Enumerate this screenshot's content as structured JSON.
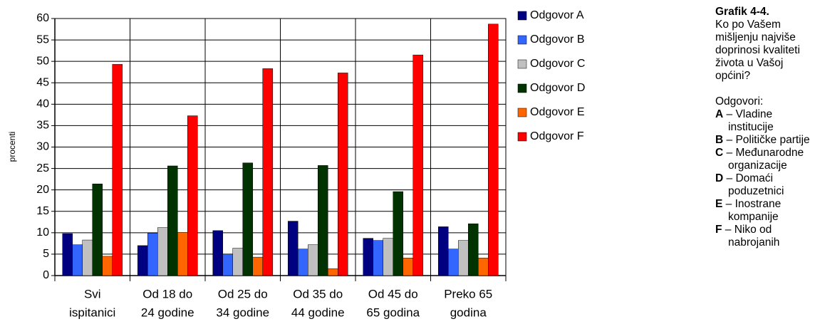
{
  "chart_data": {
    "type": "bar",
    "y_axis_label": "procenti",
    "categories": [
      [
        "Svi",
        "ispitanici"
      ],
      [
        "Od 18 do",
        "24 godine"
      ],
      [
        "Od 25 do",
        "34 godine"
      ],
      [
        "Od 35 do",
        "44 godine"
      ],
      [
        "Od 45 do",
        "65 godina"
      ],
      [
        "Preko 65",
        "godina"
      ]
    ],
    "series": [
      {
        "name": "Odgovor A",
        "color": "#000080",
        "values": [
          9.8,
          7,
          10.5,
          12.7,
          8.7,
          11.4
        ]
      },
      {
        "name": "Odgovor B",
        "color": "#3366ff",
        "values": [
          7.2,
          9.9,
          5,
          6.2,
          8.2,
          6.2
        ]
      },
      {
        "name": "Odgovor C",
        "color": "#c0c0c0",
        "values": [
          8.3,
          11.2,
          6.4,
          7.2,
          8.7,
          8.2
        ]
      },
      {
        "name": "Odgovor D",
        "color": "#003300",
        "values": [
          21.4,
          25.6,
          26.3,
          25.7,
          19.6,
          12.1
        ]
      },
      {
        "name": "Odgovor E",
        "color": "#ff6600",
        "values": [
          4.5,
          10.1,
          4.3,
          1.6,
          4.1,
          4.1
        ]
      },
      {
        "name": "Odgovor F",
        "color": "#ff0000",
        "values": [
          49.3,
          37.3,
          48.3,
          47.3,
          51.5,
          58.7
        ]
      }
    ],
    "ylim": [
      0,
      60
    ],
    "yticks": [
      0,
      5,
      10,
      15,
      20,
      25,
      30,
      35,
      40,
      45,
      50,
      55,
      60
    ],
    "grid": true,
    "legend": "right"
  },
  "side_note": {
    "title": "Grafik 4-4.",
    "question": "Ko po Vašem mišljenju najviše doprinosi kvaliteti života u Vašoj općini?",
    "answers_label": "Odgovori:",
    "answers": [
      {
        "letter": "A",
        "text": "– Vladine institucije"
      },
      {
        "letter": "B",
        "text": "– Političke partije"
      },
      {
        "letter": "C",
        "text": "– Međunarodne organizacije"
      },
      {
        "letter": "D",
        "text": "– Domaći poduzetnici"
      },
      {
        "letter": "E",
        "text": "– Inostrane kompanije"
      },
      {
        "letter": "F",
        "text": "– Niko od nabrojanih"
      }
    ]
  }
}
